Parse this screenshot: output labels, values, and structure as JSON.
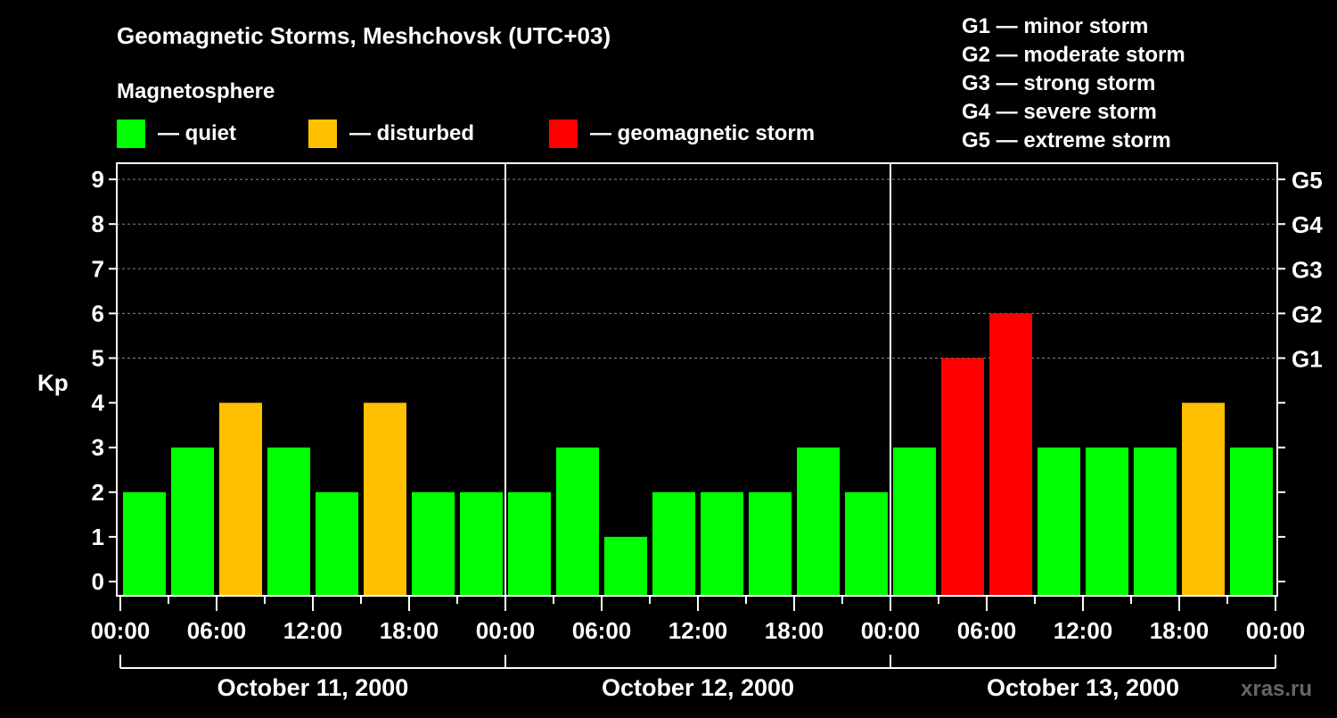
{
  "chart_data": {
    "type": "bar",
    "title": "Geomagnetic Storms, Meshchovsk (UTC+03)",
    "legend_title": "Magnetosphere",
    "legend": [
      {
        "label": "— quiet",
        "color": "#00ff00"
      },
      {
        "label": "— disturbed",
        "color": "#ffc000"
      },
      {
        "label": "— geomagnetic storm",
        "color": "#ff0000"
      }
    ],
    "scale_legend": [
      "G1 — minor storm",
      "G2 — moderate storm",
      "G3 — strong storm",
      "G4 — severe storm",
      "G5 — extreme storm"
    ],
    "ylabel": "Kp",
    "ylim": [
      0,
      9
    ],
    "yticks": [
      "0",
      "1",
      "2",
      "3",
      "4",
      "5",
      "6",
      "7",
      "8",
      "9"
    ],
    "right_ticks": [
      {
        "kp": 5,
        "label": "G1"
      },
      {
        "kp": 6,
        "label": "G2"
      },
      {
        "kp": 7,
        "label": "G3"
      },
      {
        "kp": 8,
        "label": "G4"
      },
      {
        "kp": 9,
        "label": "G5"
      }
    ],
    "xticks": [
      "00:00",
      "06:00",
      "12:00",
      "18:00",
      "00:00",
      "06:00",
      "12:00",
      "18:00",
      "00:00",
      "06:00",
      "12:00",
      "18:00",
      "00:00"
    ],
    "days": [
      "October 11, 2000",
      "October 12, 2000",
      "October 13, 2000"
    ],
    "interval_hours": 3,
    "values": [
      2,
      3,
      4,
      3,
      2,
      4,
      2,
      2,
      2,
      3,
      1,
      2,
      2,
      2,
      3,
      2,
      3,
      5,
      6,
      3,
      3,
      3,
      4,
      3
    ],
    "grid": "dashed at Kp 5-9",
    "watermark": "xras.ru"
  }
}
